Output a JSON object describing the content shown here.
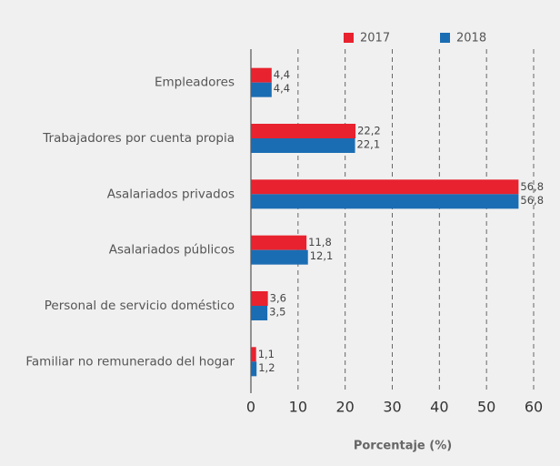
{
  "chart_data": {
    "type": "bar",
    "orientation": "horizontal",
    "categories": [
      "Empleadores",
      "Trabajadores por cuenta propia",
      "Asalariados privados",
      "Asalariados públicos",
      "Personal de servicio doméstico",
      "Familiar no remunerado del hogar"
    ],
    "series": [
      {
        "name": "2017",
        "color": "#e8222e",
        "values": [
          4.4,
          22.2,
          56.8,
          11.8,
          3.6,
          1.1
        ],
        "value_labels": [
          "4,4",
          "22,2",
          "56,8",
          "11,8",
          "3,6",
          "1,1"
        ]
      },
      {
        "name": "2018",
        "color": "#1b6db3",
        "values": [
          4.4,
          22.1,
          56.8,
          12.1,
          3.5,
          1.2
        ],
        "value_labels": [
          "4,4",
          "22,1",
          "56,8",
          "12,1",
          "3,5",
          "1,2"
        ]
      }
    ],
    "xlim": [
      0,
      60
    ],
    "xticks": [
      0,
      10,
      20,
      30,
      40,
      50,
      60
    ],
    "xlabel": "Porcentaje (%)",
    "grid": true,
    "legend": "top"
  }
}
